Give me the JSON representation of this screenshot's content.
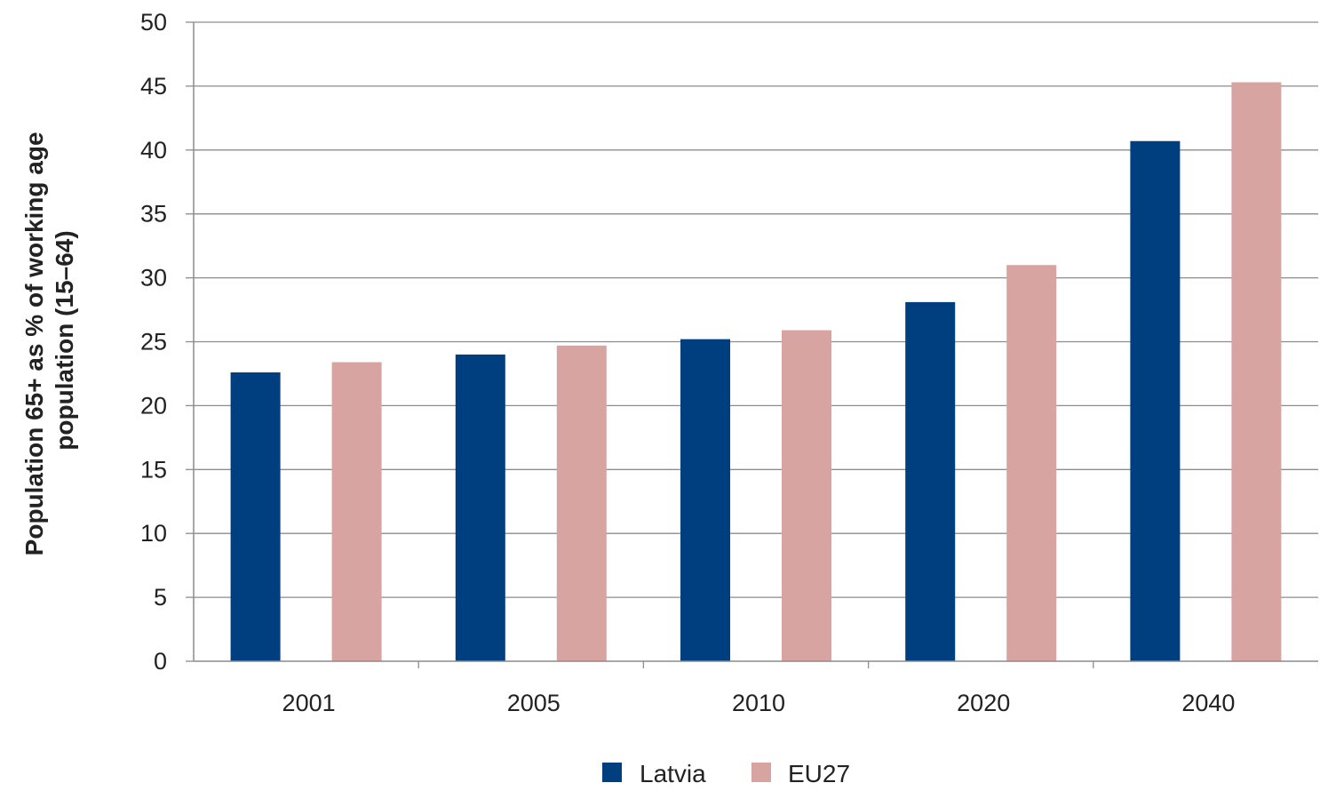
{
  "chart_data": {
    "type": "bar",
    "title": "",
    "xlabel": "",
    "ylabel_lines": [
      "Population 65+ as % of working age",
      "population (15–64)"
    ],
    "categories": [
      "2001",
      "2005",
      "2010",
      "2020",
      "2040"
    ],
    "series": [
      {
        "name": "Latvia",
        "color": "#003f7f",
        "values": [
          22.6,
          24.0,
          25.2,
          28.1,
          40.7
        ]
      },
      {
        "name": "EU27",
        "color": "#d8a4a2",
        "values": [
          23.4,
          24.7,
          25.9,
          31.0,
          45.3
        ]
      }
    ],
    "ylim": [
      0,
      50
    ],
    "yticks": [
      "0",
      "5",
      "10",
      "15",
      "20",
      "25",
      "30",
      "35",
      "40",
      "45",
      "50"
    ],
    "grid": true,
    "legend_position": "bottom-center"
  }
}
